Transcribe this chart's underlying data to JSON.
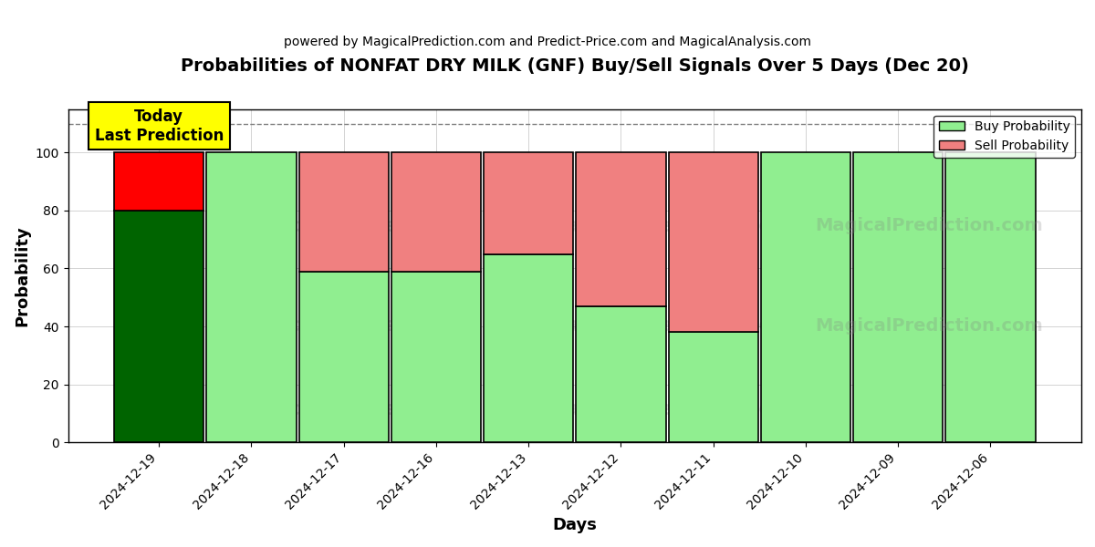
{
  "title": "Probabilities of NONFAT DRY MILK (GNF) Buy/Sell Signals Over 5 Days (Dec 20)",
  "subtitle": "powered by MagicalPrediction.com and Predict-Price.com and MagicalAnalysis.com",
  "xlabel": "Days",
  "ylabel": "Probability",
  "dates": [
    "2024-12-19",
    "2024-12-18",
    "2024-12-17",
    "2024-12-16",
    "2024-12-13",
    "2024-12-12",
    "2024-12-11",
    "2024-12-10",
    "2024-12-09",
    "2024-12-06"
  ],
  "buy_values": [
    80,
    100,
    59,
    59,
    65,
    47,
    38,
    100,
    100,
    100
  ],
  "sell_values": [
    20,
    0,
    41,
    41,
    35,
    53,
    62,
    0,
    0,
    0
  ],
  "today_buy_color": "#006400",
  "today_sell_color": "#FF0000",
  "buy_color_light": "#90EE90",
  "sell_color_light": "#F08080",
  "bar_edge_color": "black",
  "bar_edge_width": 1.2,
  "ylim": [
    0,
    115
  ],
  "yticks": [
    0,
    20,
    40,
    60,
    80,
    100
  ],
  "dashed_line_y": 110,
  "today_annotation": "Today\nLast Prediction",
  "legend_buy_label": "Buy Probability",
  "legend_sell_label": "Sell Probability",
  "figsize": [
    12,
    6
  ],
  "dpi": 100
}
